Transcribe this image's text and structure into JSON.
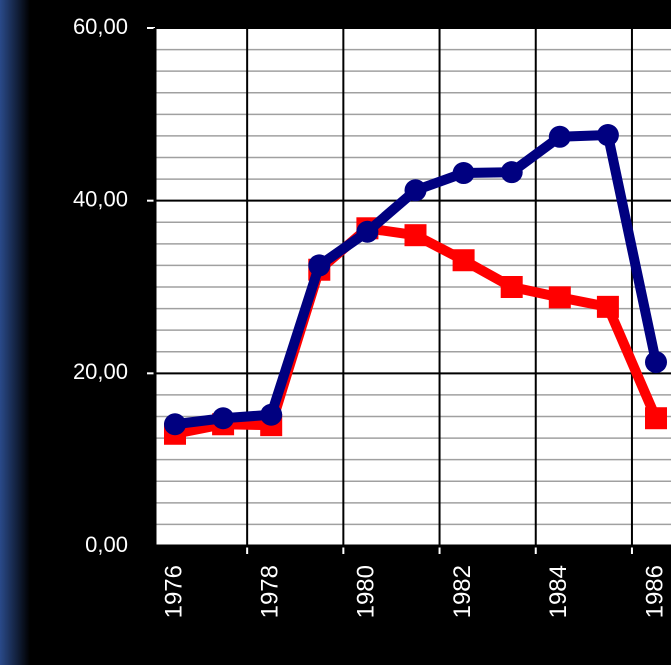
{
  "chart_data": {
    "type": "line",
    "categories": [
      "1976",
      null,
      "1978",
      null,
      "1980",
      null,
      "1982",
      null,
      "1984",
      null,
      "1986"
    ],
    "series": [
      {
        "color": "#ff0000",
        "marker": "square",
        "values": [
          13.0,
          14.1,
          14.0,
          32.0,
          36.8,
          36.0,
          33.1,
          30.0,
          28.8,
          27.7,
          14.8
        ]
      },
      {
        "color": "#000080",
        "marker": "circle",
        "values": [
          14.1,
          14.8,
          15.2,
          32.5,
          36.4,
          41.2,
          43.2,
          43.3,
          47.4,
          47.6,
          21.3
        ]
      }
    ],
    "ylim": [
      0,
      60
    ],
    "yticks": [
      {
        "value": 0,
        "label": "0,00"
      },
      {
        "value": 20,
        "label": "20,00"
      },
      {
        "value": 40,
        "label": "40,00"
      },
      {
        "value": 60,
        "label": "60,00"
      }
    ],
    "minor_ygrid": 2.5,
    "grid": true
  }
}
